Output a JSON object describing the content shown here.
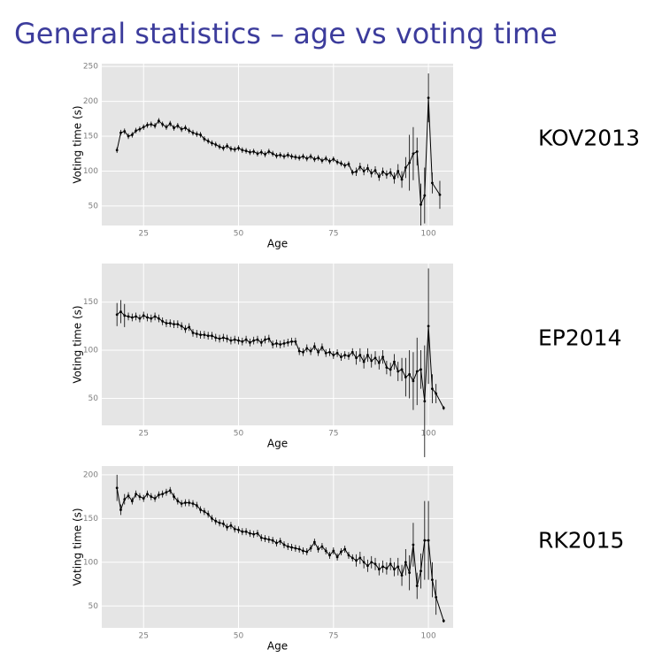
{
  "title": "General statistics – age vs voting time",
  "chart_data": [
    {
      "type": "line",
      "label": "KOV2013",
      "x_label": "Age",
      "y_label": "Voting time (s)",
      "xlim": [
        14,
        106.5
      ],
      "xticks": [
        25,
        50,
        75,
        100
      ],
      "ylim": [
        22,
        254
      ],
      "yticks": [
        50,
        100,
        150,
        200,
        250
      ],
      "grid": true,
      "color": "#000000",
      "x": [
        18,
        19,
        20,
        21,
        22,
        23,
        24,
        25,
        26,
        27,
        28,
        29,
        30,
        31,
        32,
        33,
        34,
        35,
        36,
        37,
        38,
        39,
        40,
        41,
        42,
        43,
        44,
        45,
        46,
        47,
        48,
        49,
        50,
        51,
        52,
        53,
        54,
        55,
        56,
        57,
        58,
        59,
        60,
        61,
        62,
        63,
        64,
        65,
        66,
        67,
        68,
        69,
        70,
        71,
        72,
        73,
        74,
        75,
        76,
        77,
        78,
        79,
        80,
        81,
        82,
        83,
        84,
        85,
        86,
        87,
        88,
        89,
        90,
        91,
        92,
        93,
        94,
        95,
        96,
        97,
        98,
        99,
        100,
        101,
        103
      ],
      "values": [
        130,
        155,
        157,
        150,
        152,
        158,
        160,
        163,
        166,
        167,
        165,
        172,
        167,
        163,
        168,
        162,
        165,
        160,
        162,
        158,
        155,
        153,
        152,
        146,
        143,
        140,
        138,
        135,
        133,
        136,
        132,
        131,
        133,
        130,
        129,
        127,
        128,
        125,
        127,
        124,
        128,
        125,
        122,
        123,
        121,
        123,
        121,
        120,
        119,
        121,
        118,
        121,
        117,
        119,
        115,
        118,
        114,
        117,
        113,
        111,
        108,
        110,
        98,
        99,
        106,
        100,
        104,
        97,
        101,
        92,
        99,
        95,
        98,
        90,
        100,
        88,
        105,
        112,
        125,
        128,
        52,
        65,
        205,
        83,
        66
      ],
      "errors": [
        4,
        4,
        4,
        4,
        4,
        4,
        4,
        4,
        4,
        4,
        4,
        4,
        4,
        4,
        4,
        4,
        4,
        4,
        4,
        4,
        4,
        4,
        4,
        4,
        4,
        4,
        4,
        4,
        4,
        4,
        4,
        4,
        4,
        4,
        4,
        4,
        4,
        4,
        4,
        4,
        4,
        4,
        4,
        4,
        4,
        4,
        4,
        4,
        4,
        4,
        4,
        4,
        4,
        4,
        4,
        4,
        4,
        4,
        4,
        4,
        4,
        4,
        4,
        6,
        6,
        6,
        6,
        6,
        6,
        6,
        6,
        6,
        6,
        8,
        10,
        12,
        15,
        40,
        38,
        20,
        30,
        40,
        35,
        15,
        20
      ]
    },
    {
      "type": "line",
      "label": "EP2014",
      "x_label": "Age",
      "y_label": "Voting time (s)",
      "xlim": [
        14,
        106.5
      ],
      "xticks": [
        25,
        50,
        75,
        100
      ],
      "ylim": [
        22,
        190
      ],
      "yticks": [
        50,
        100,
        150
      ],
      "grid": true,
      "color": "#000000",
      "x": [
        18,
        19,
        20,
        21,
        22,
        23,
        24,
        25,
        26,
        27,
        28,
        29,
        30,
        31,
        32,
        33,
        34,
        35,
        36,
        37,
        38,
        39,
        40,
        41,
        42,
        43,
        44,
        45,
        46,
        47,
        48,
        49,
        50,
        51,
        52,
        53,
        54,
        55,
        56,
        57,
        58,
        59,
        60,
        61,
        62,
        63,
        64,
        65,
        66,
        67,
        68,
        69,
        70,
        71,
        72,
        73,
        74,
        75,
        76,
        77,
        78,
        79,
        80,
        81,
        82,
        83,
        84,
        85,
        86,
        87,
        88,
        89,
        90,
        91,
        92,
        93,
        94,
        95,
        96,
        97,
        98,
        99,
        100,
        101,
        102,
        104
      ],
      "values": [
        137,
        140,
        136,
        135,
        134,
        135,
        133,
        136,
        134,
        133,
        135,
        133,
        130,
        128,
        128,
        127,
        127,
        125,
        122,
        124,
        118,
        117,
        116,
        116,
        115,
        115,
        113,
        112,
        113,
        112,
        110,
        111,
        110,
        109,
        111,
        108,
        110,
        111,
        108,
        111,
        112,
        106,
        107,
        106,
        107,
        108,
        109,
        109,
        99,
        98,
        102,
        99,
        104,
        98,
        103,
        97,
        98,
        95,
        97,
        93,
        95,
        94,
        98,
        92,
        95,
        88,
        95,
        89,
        92,
        87,
        93,
        82,
        80,
        88,
        78,
        80,
        72,
        75,
        68,
        78,
        80,
        47,
        125,
        60,
        55,
        40
      ],
      "errors": [
        12,
        12,
        12,
        4,
        4,
        4,
        4,
        4,
        4,
        4,
        4,
        4,
        4,
        4,
        4,
        4,
        4,
        4,
        4,
        4,
        4,
        4,
        4,
        4,
        4,
        4,
        4,
        4,
        4,
        4,
        4,
        4,
        4,
        4,
        4,
        4,
        4,
        4,
        4,
        4,
        4,
        4,
        4,
        4,
        4,
        4,
        4,
        4,
        4,
        4,
        4,
        4,
        4,
        4,
        4,
        4,
        4,
        4,
        4,
        4,
        4,
        4,
        4,
        7,
        7,
        7,
        7,
        7,
        7,
        7,
        7,
        7,
        7,
        8,
        10,
        12,
        20,
        25,
        30,
        35,
        20,
        58,
        60,
        15,
        10,
        2
      ]
    },
    {
      "type": "line",
      "label": "RK2015",
      "x_label": "Age",
      "y_label": "Voting time (s)",
      "xlim": [
        14,
        106.5
      ],
      "xticks": [
        25,
        50,
        75,
        100
      ],
      "ylim": [
        25,
        210
      ],
      "yticks": [
        50,
        100,
        150,
        200
      ],
      "grid": true,
      "color": "#000000",
      "x": [
        18,
        19,
        20,
        21,
        22,
        23,
        24,
        25,
        26,
        27,
        28,
        29,
        30,
        31,
        32,
        33,
        34,
        35,
        36,
        37,
        38,
        39,
        40,
        41,
        42,
        43,
        44,
        45,
        46,
        47,
        48,
        49,
        50,
        51,
        52,
        53,
        54,
        55,
        56,
        57,
        58,
        59,
        60,
        61,
        62,
        63,
        64,
        65,
        66,
        67,
        68,
        69,
        70,
        71,
        72,
        73,
        74,
        75,
        76,
        77,
        78,
        79,
        80,
        81,
        82,
        83,
        84,
        85,
        86,
        87,
        88,
        89,
        90,
        91,
        92,
        93,
        94,
        95,
        96,
        97,
        98,
        99,
        100,
        101,
        102,
        104
      ],
      "values": [
        185,
        160,
        172,
        176,
        170,
        178,
        175,
        173,
        178,
        175,
        173,
        177,
        178,
        180,
        182,
        175,
        170,
        167,
        168,
        168,
        167,
        165,
        160,
        158,
        155,
        150,
        147,
        145,
        144,
        140,
        142,
        138,
        137,
        135,
        135,
        133,
        132,
        133,
        128,
        127,
        126,
        125,
        122,
        124,
        120,
        118,
        117,
        116,
        115,
        113,
        112,
        116,
        123,
        115,
        118,
        113,
        108,
        113,
        106,
        112,
        115,
        108,
        105,
        102,
        105,
        100,
        96,
        100,
        98,
        92,
        95,
        93,
        98,
        92,
        95,
        85,
        100,
        88,
        120,
        73,
        90,
        125,
        125,
        80,
        60,
        33
      ],
      "errors": [
        15,
        6,
        6,
        4,
        4,
        4,
        4,
        4,
        4,
        4,
        4,
        4,
        4,
        4,
        4,
        4,
        4,
        4,
        4,
        4,
        4,
        4,
        4,
        4,
        4,
        4,
        4,
        4,
        4,
        4,
        4,
        4,
        4,
        4,
        4,
        4,
        4,
        4,
        4,
        4,
        4,
        4,
        4,
        4,
        4,
        4,
        4,
        4,
        4,
        4,
        4,
        4,
        4,
        4,
        4,
        4,
        4,
        4,
        4,
        4,
        4,
        4,
        4,
        7,
        7,
        7,
        7,
        7,
        7,
        7,
        7,
        7,
        7,
        8,
        10,
        12,
        15,
        20,
        25,
        15,
        20,
        45,
        45,
        20,
        20,
        2
      ]
    }
  ]
}
